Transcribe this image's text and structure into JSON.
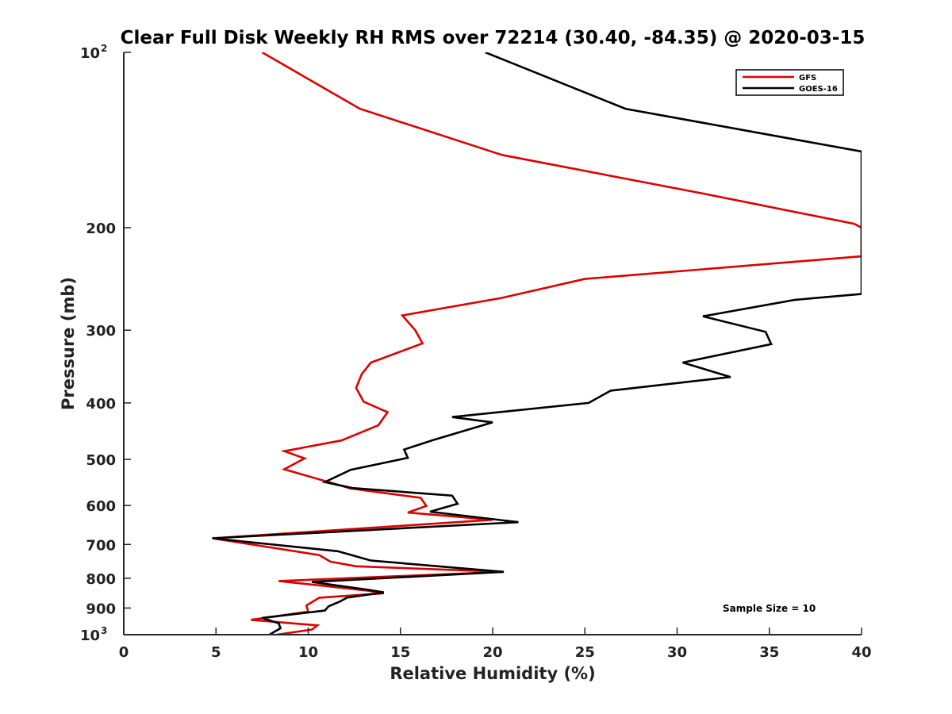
{
  "chart_data": {
    "type": "line",
    "title": "Clear Full Disk Weekly RH RMS over 72214 (30.40, -84.35) @ 2020-03-15",
    "xlabel": "Relative Humidity (%)",
    "ylabel": "Pressure (mb)",
    "xlim": [
      0,
      40
    ],
    "ylim": [
      100,
      1000
    ],
    "y_scale": "log",
    "y_reversed": true,
    "x_ticks": [
      "0",
      "5",
      "10",
      "15",
      "20",
      "25",
      "30",
      "35",
      "40"
    ],
    "y_ticks": [
      {
        "value": 100,
        "base": "10",
        "exp": "2"
      },
      {
        "value": 200,
        "label": "200"
      },
      {
        "value": 300,
        "label": "300"
      },
      {
        "value": 400,
        "label": "400"
      },
      {
        "value": 500,
        "label": "500"
      },
      {
        "value": 600,
        "label": "600"
      },
      {
        "value": 700,
        "label": "700"
      },
      {
        "value": 800,
        "label": "800"
      },
      {
        "value": 900,
        "label": "900"
      },
      {
        "value": 1000,
        "base": "10",
        "exp": "3"
      }
    ],
    "legend_position": "top-right",
    "annotation": "Sample Size = 10",
    "series": [
      {
        "name": "GFS",
        "color": "#dd0000",
        "points": [
          [
            7.5,
            100
          ],
          [
            12.8,
            125
          ],
          [
            20.5,
            150
          ],
          [
            31.5,
            175
          ],
          [
            39.6,
            197
          ],
          [
            40,
            200
          ],
          [
            40,
            224
          ],
          [
            25,
            245
          ],
          [
            20.5,
            264
          ],
          [
            15.1,
            283
          ],
          [
            15.8,
            300
          ],
          [
            16.2,
            316
          ],
          [
            13.4,
            341
          ],
          [
            12.9,
            357
          ],
          [
            12.6,
            377
          ],
          [
            13.0,
            398
          ],
          [
            14.3,
            415
          ],
          [
            13.8,
            437
          ],
          [
            11.8,
            464
          ],
          [
            8.7,
            484
          ],
          [
            9.8,
            498
          ],
          [
            8.7,
            520
          ],
          [
            12.3,
            561
          ],
          [
            16.1,
            582
          ],
          [
            16.4,
            601
          ],
          [
            15.4,
            617
          ],
          [
            20.0,
            635
          ],
          [
            4.8,
            683
          ],
          [
            10.6,
            730
          ],
          [
            11.2,
            749
          ],
          [
            12.6,
            763
          ],
          [
            20.6,
            780
          ],
          [
            8.4,
            809
          ],
          [
            13.2,
            840
          ],
          [
            14.1,
            849
          ],
          [
            10.6,
            864
          ],
          [
            9.9,
            891
          ],
          [
            10.0,
            913
          ],
          [
            6.9,
            943
          ],
          [
            10.5,
            964
          ],
          [
            10.2,
            980
          ],
          [
            8.3,
            1000
          ]
        ]
      },
      {
        "name": "GOES-16",
        "color": "#000000",
        "points": [
          [
            19.6,
            100
          ],
          [
            27.2,
            125
          ],
          [
            40,
            148
          ],
          [
            40,
            260
          ],
          [
            36.4,
            266
          ],
          [
            31.4,
            284
          ],
          [
            34.8,
            302
          ],
          [
            35.1,
            317
          ],
          [
            30.3,
            341
          ],
          [
            32.9,
            361
          ],
          [
            26.4,
            381
          ],
          [
            25.2,
            400
          ],
          [
            17.8,
            423
          ],
          [
            20.0,
            432
          ],
          [
            16.8,
            463
          ],
          [
            15.2,
            481
          ],
          [
            15.4,
            497
          ],
          [
            12.3,
            521
          ],
          [
            10.9,
            547
          ],
          [
            12.4,
            560
          ],
          [
            17.8,
            577
          ],
          [
            18.1,
            596
          ],
          [
            16.6,
            615
          ],
          [
            21.4,
            641
          ],
          [
            4.8,
            683
          ],
          [
            11.6,
            719
          ],
          [
            13.4,
            746
          ],
          [
            20.6,
            780
          ],
          [
            10.2,
            812
          ],
          [
            13.2,
            837
          ],
          [
            14.1,
            846
          ],
          [
            12.1,
            864
          ],
          [
            11.7,
            878
          ],
          [
            11.1,
            894
          ],
          [
            10.9,
            909
          ],
          [
            7.5,
            936
          ],
          [
            8.4,
            956
          ],
          [
            8.5,
            975
          ],
          [
            7.9,
            1000
          ]
        ]
      }
    ]
  }
}
